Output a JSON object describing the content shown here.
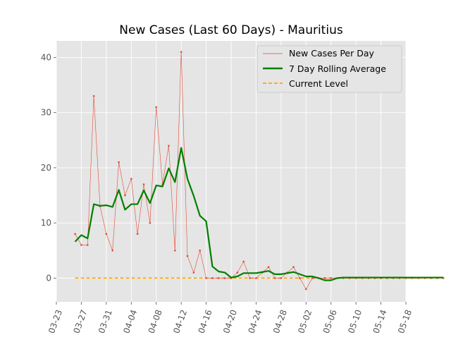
{
  "chart_data": {
    "type": "line",
    "title": "New Cases (Last 60 Days) - Mauritius",
    "xlabel": "",
    "ylabel": "",
    "x_start": "2020-03-23",
    "x_end": "2020-05-18",
    "xticks": [
      "03-23",
      "03-27",
      "03-31",
      "04-04",
      "04-08",
      "04-12",
      "04-16",
      "04-20",
      "04-24",
      "04-28",
      "05-02",
      "05-06",
      "05-10",
      "05-14",
      "05-18"
    ],
    "yticks": [
      0,
      10,
      20,
      30,
      40
    ],
    "ylim": [
      -4.3,
      43
    ],
    "grid": true,
    "legend_position": "top-right",
    "series": [
      {
        "name": "New Cases Per Day",
        "style": "thin line with point markers",
        "color": "#e24a33",
        "dates": [
          "2020-03-26",
          "2020-03-27",
          "2020-03-28",
          "2020-03-29",
          "2020-03-30",
          "2020-03-31",
          "2020-04-01",
          "2020-04-02",
          "2020-04-03",
          "2020-04-04",
          "2020-04-05",
          "2020-04-06",
          "2020-04-07",
          "2020-04-08",
          "2020-04-09",
          "2020-04-10",
          "2020-04-11",
          "2020-04-12",
          "2020-04-13",
          "2020-04-14",
          "2020-04-15",
          "2020-04-16",
          "2020-04-17",
          "2020-04-18",
          "2020-04-19",
          "2020-04-20",
          "2020-04-21",
          "2020-04-22",
          "2020-04-23",
          "2020-04-24",
          "2020-04-25",
          "2020-04-26",
          "2020-04-27",
          "2020-04-28",
          "2020-04-29",
          "2020-04-30",
          "2020-05-01",
          "2020-05-02",
          "2020-05-03",
          "2020-05-04",
          "2020-05-05",
          "2020-05-06",
          "2020-05-07",
          "2020-05-08",
          "2020-05-09",
          "2020-05-10",
          "2020-05-11",
          "2020-05-12",
          "2020-05-13",
          "2020-05-14",
          "2020-05-15",
          "2020-05-16",
          "2020-05-17",
          "2020-05-18",
          "2020-05-19",
          "2020-05-20",
          "2020-05-21",
          "2020-05-22",
          "2020-05-23",
          "2020-05-24"
        ],
        "values": [
          8,
          6,
          6,
          33,
          13,
          8,
          5,
          21,
          15,
          18,
          8,
          17,
          10,
          31,
          17,
          24,
          5,
          41,
          4,
          1,
          5,
          0,
          0,
          0,
          0,
          0,
          1,
          3,
          0,
          0,
          1,
          2,
          0,
          0,
          1,
          2,
          0,
          -2,
          0,
          0,
          0,
          0,
          0,
          0,
          0,
          0,
          0,
          0,
          0,
          0,
          0,
          0,
          0,
          0,
          0,
          0,
          0,
          0,
          0,
          0
        ]
      },
      {
        "name": "7 Day Rolling Average",
        "style": "thick line",
        "color": "#008000",
        "dates": [
          "2020-03-26",
          "2020-03-27",
          "2020-03-28",
          "2020-03-29",
          "2020-03-30",
          "2020-03-31",
          "2020-04-01",
          "2020-04-02",
          "2020-04-03",
          "2020-04-04",
          "2020-04-05",
          "2020-04-06",
          "2020-04-07",
          "2020-04-08",
          "2020-04-09",
          "2020-04-10",
          "2020-04-11",
          "2020-04-12",
          "2020-04-13",
          "2020-04-14",
          "2020-04-15",
          "2020-04-16",
          "2020-04-17",
          "2020-04-18",
          "2020-04-19",
          "2020-04-20",
          "2020-04-21",
          "2020-04-22",
          "2020-04-23",
          "2020-04-24",
          "2020-04-25",
          "2020-04-26",
          "2020-04-27",
          "2020-04-28",
          "2020-04-29",
          "2020-04-30",
          "2020-05-01",
          "2020-05-02",
          "2020-05-03",
          "2020-05-04",
          "2020-05-05",
          "2020-05-06",
          "2020-05-07",
          "2020-05-08",
          "2020-05-09",
          "2020-05-10",
          "2020-05-11",
          "2020-05-12",
          "2020-05-13",
          "2020-05-14",
          "2020-05-15",
          "2020-05-16",
          "2020-05-17",
          "2020-05-18",
          "2020-05-19",
          "2020-05-20",
          "2020-05-21",
          "2020-05-22",
          "2020-05-23",
          "2020-05-24"
        ],
        "values": [
          6.6,
          7.8,
          7.2,
          13.4,
          13.1,
          13.2,
          12.9,
          16,
          12.4,
          13.4,
          13.4,
          15.9,
          13.6,
          16.8,
          16.6,
          19.9,
          17.4,
          23.6,
          18,
          14.9,
          11.3,
          10.3,
          2.1,
          1.2,
          1,
          0.1,
          0.3,
          0.9,
          0.9,
          0.9,
          1.1,
          1.3,
          0.7,
          0.7,
          0.9,
          1.1,
          0.7,
          0.3,
          0.3,
          0,
          -0.4,
          -0.4,
          0,
          0.1,
          0.1,
          0.1,
          0.1,
          0.1,
          0.1,
          0.1,
          0.1,
          0.1,
          0.1,
          0.1,
          0.1,
          0.1,
          0.1,
          0.1,
          0.1,
          0.1
        ]
      },
      {
        "name": "Current Level",
        "style": "dashed line",
        "color": "#ffa500",
        "dates": [
          "2020-03-26",
          "2020-05-24"
        ],
        "values": [
          0,
          0
        ]
      }
    ]
  }
}
